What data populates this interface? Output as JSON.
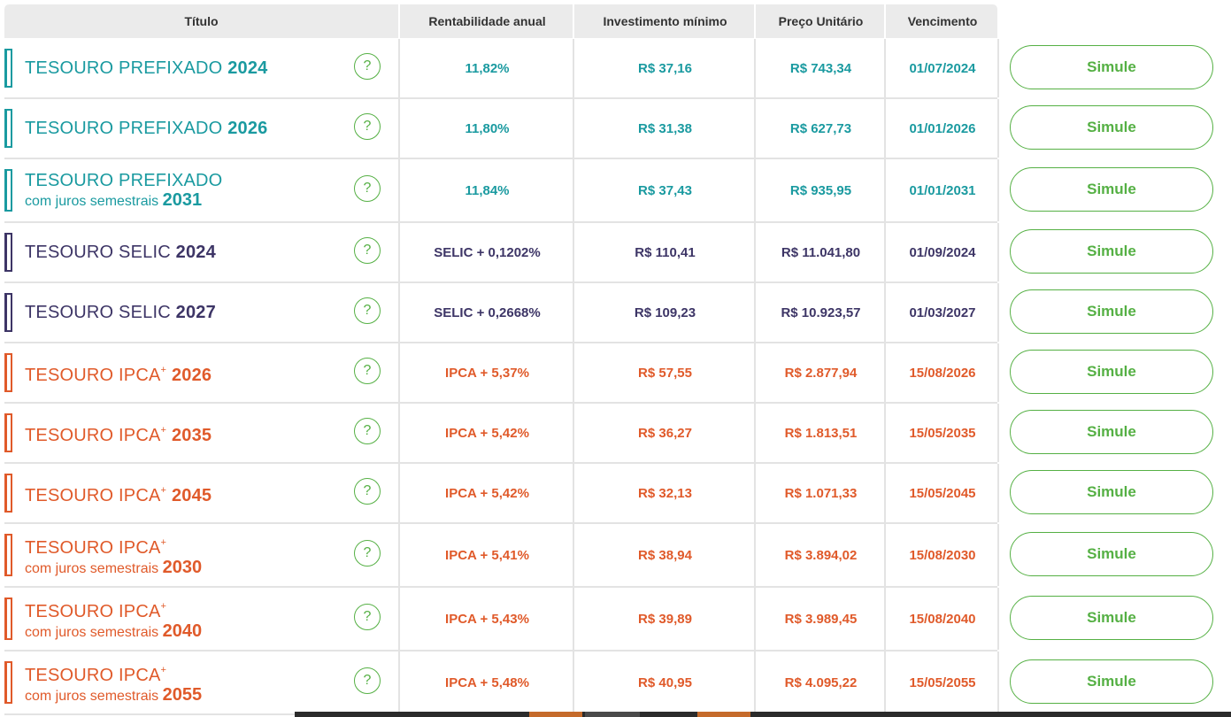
{
  "colors": {
    "prefixado": "#1a9aa0",
    "selic": "#3d3566",
    "ipca": "#e05a2a",
    "green": "#55b044"
  },
  "headers": {
    "titulo": "Título",
    "rentabilidade": "Rentabilidade anual",
    "investimento": "Investimento mínimo",
    "preco": "Preço Unitário",
    "vencimento": "Vencimento"
  },
  "help_symbol": "?",
  "rows": [
    {
      "kind": "prefixado",
      "name": "TESOURO PREFIXADO",
      "sup": "",
      "sub": "",
      "year": "2024",
      "rent": "11,82%",
      "inv": "R$ 37,16",
      "preco": "R$ 743,34",
      "venc": "01/07/2024",
      "action": "Simule"
    },
    {
      "kind": "prefixado",
      "name": "TESOURO PREFIXADO",
      "sup": "",
      "sub": "",
      "year": "2026",
      "rent": "11,80%",
      "inv": "R$ 31,38",
      "preco": "R$ 627,73",
      "venc": "01/01/2026",
      "action": "Simule"
    },
    {
      "kind": "prefixado",
      "name": "TESOURO PREFIXADO",
      "sup": "",
      "sub": "com juros semestrais",
      "year": "2031",
      "rent": "11,84%",
      "inv": "R$ 37,43",
      "preco": "R$ 935,95",
      "venc": "01/01/2031",
      "action": "Simule"
    },
    {
      "kind": "selic",
      "name": "TESOURO SELIC",
      "sup": "",
      "sub": "",
      "year": "2024",
      "rent": "SELIC + 0,1202%",
      "inv": "R$ 110,41",
      "preco": "R$ 11.041,80",
      "venc": "01/09/2024",
      "action": "Simule"
    },
    {
      "kind": "selic",
      "name": "TESOURO SELIC",
      "sup": "",
      "sub": "",
      "year": "2027",
      "rent": "SELIC + 0,2668%",
      "inv": "R$ 109,23",
      "preco": "R$ 10.923,57",
      "venc": "01/03/2027",
      "action": "Simule"
    },
    {
      "kind": "ipca",
      "name": "TESOURO IPCA",
      "sup": "+",
      "sub": "",
      "year": "2026",
      "rent": "IPCA + 5,37%",
      "inv": "R$ 57,55",
      "preco": "R$ 2.877,94",
      "venc": "15/08/2026",
      "action": "Simule"
    },
    {
      "kind": "ipca",
      "name": "TESOURO IPCA",
      "sup": "+",
      "sub": "",
      "year": "2035",
      "rent": "IPCA + 5,42%",
      "inv": "R$ 36,27",
      "preco": "R$ 1.813,51",
      "venc": "15/05/2035",
      "action": "Simule"
    },
    {
      "kind": "ipca",
      "name": "TESOURO IPCA",
      "sup": "+",
      "sub": "",
      "year": "2045",
      "rent": "IPCA + 5,42%",
      "inv": "R$ 32,13",
      "preco": "R$ 1.071,33",
      "venc": "15/05/2045",
      "action": "Simule"
    },
    {
      "kind": "ipca",
      "name": "TESOURO IPCA",
      "sup": "+",
      "sub": "com juros semestrais",
      "year": "2030",
      "rent": "IPCA + 5,41%",
      "inv": "R$ 38,94",
      "preco": "R$ 3.894,02",
      "venc": "15/08/2030",
      "action": "Simule"
    },
    {
      "kind": "ipca",
      "name": "TESOURO IPCA",
      "sup": "+",
      "sub": "com juros semestrais",
      "year": "2040",
      "rent": "IPCA + 5,43%",
      "inv": "R$ 39,89",
      "preco": "R$ 3.989,45",
      "venc": "15/08/2040",
      "action": "Simule"
    },
    {
      "kind": "ipca",
      "name": "TESOURO IPCA",
      "sup": "+",
      "sub": "com juros semestrais",
      "year": "2055",
      "rent": "IPCA + 5,48%",
      "inv": "R$ 40,95",
      "preco": "R$ 4.095,22",
      "venc": "15/05/2055",
      "action": "Simule"
    }
  ]
}
